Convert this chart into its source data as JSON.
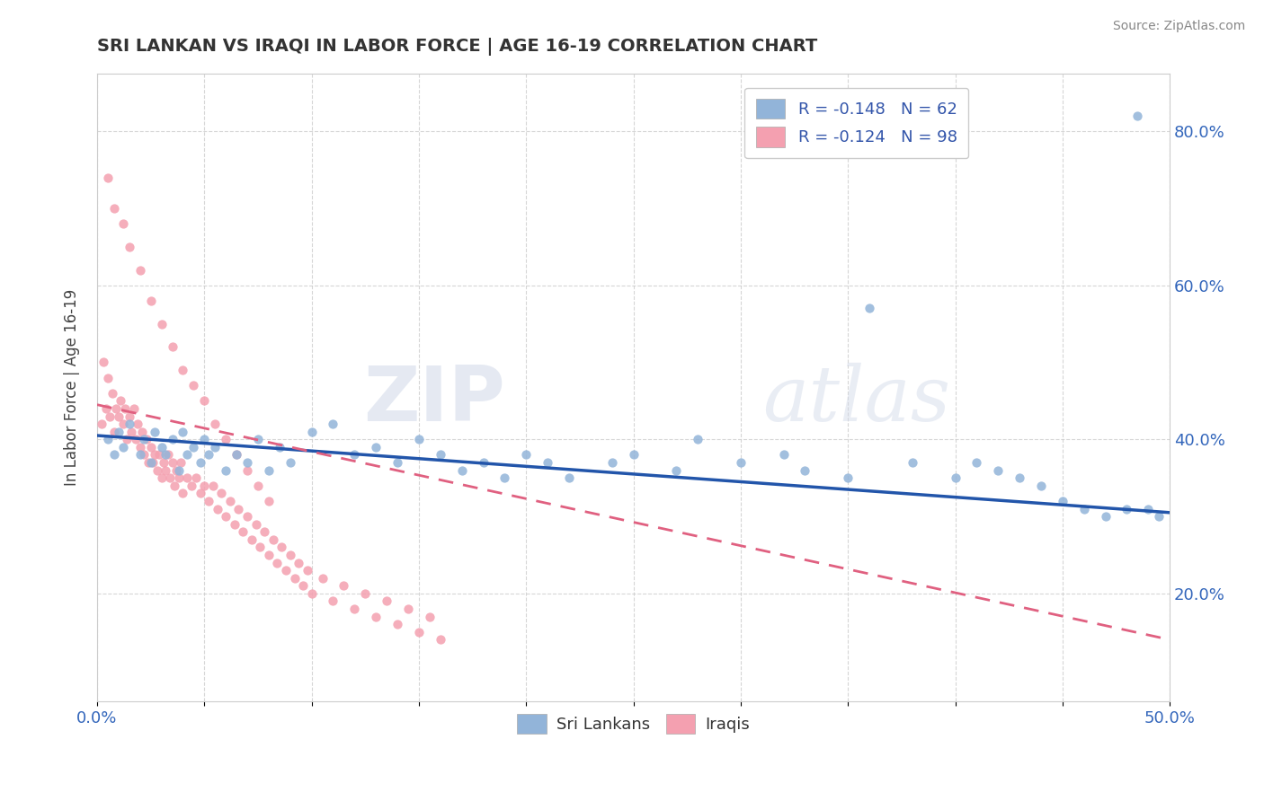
{
  "title": "SRI LANKAN VS IRAQI IN LABOR FORCE | AGE 16-19 CORRELATION CHART",
  "source": "Source: ZipAtlas.com",
  "ylabel": "In Labor Force | Age 16-19",
  "xmin": 0.0,
  "xmax": 0.5,
  "ymin": 0.06,
  "ymax": 0.875,
  "yticks": [
    0.2,
    0.4,
    0.6,
    0.8
  ],
  "ytick_labels": [
    "20.0%",
    "40.0%",
    "60.0%",
    "80.0%"
  ],
  "xticks": [
    0.0,
    0.05,
    0.1,
    0.15,
    0.2,
    0.25,
    0.3,
    0.35,
    0.4,
    0.45,
    0.5
  ],
  "legend_r1": "R = -0.148",
  "legend_n1": "N = 62",
  "legend_r2": "R = -0.124",
  "legend_n2": "N = 98",
  "sri_lankan_color": "#92B4D9",
  "iraqi_color": "#F4A0B0",
  "sri_lankan_line_color": "#2255AA",
  "iraqi_line_color": "#E06080",
  "watermark_zip": "ZIP",
  "watermark_atlas": "atlas",
  "sl_x": [
    0.005,
    0.008,
    0.01,
    0.012,
    0.015,
    0.02,
    0.022,
    0.025,
    0.027,
    0.03,
    0.032,
    0.035,
    0.038,
    0.04,
    0.042,
    0.045,
    0.048,
    0.05,
    0.052,
    0.055,
    0.06,
    0.065,
    0.07,
    0.075,
    0.08,
    0.085,
    0.09,
    0.1,
    0.11,
    0.12,
    0.13,
    0.14,
    0.15,
    0.16,
    0.17,
    0.18,
    0.19,
    0.2,
    0.21,
    0.22,
    0.24,
    0.25,
    0.27,
    0.28,
    0.3,
    0.32,
    0.33,
    0.35,
    0.36,
    0.38,
    0.4,
    0.41,
    0.42,
    0.43,
    0.44,
    0.45,
    0.46,
    0.47,
    0.48,
    0.49,
    0.485,
    0.495
  ],
  "sl_y": [
    0.4,
    0.38,
    0.41,
    0.39,
    0.42,
    0.38,
    0.4,
    0.37,
    0.41,
    0.39,
    0.38,
    0.4,
    0.36,
    0.41,
    0.38,
    0.39,
    0.37,
    0.4,
    0.38,
    0.39,
    0.36,
    0.38,
    0.37,
    0.4,
    0.36,
    0.39,
    0.37,
    0.41,
    0.42,
    0.38,
    0.39,
    0.37,
    0.4,
    0.38,
    0.36,
    0.37,
    0.35,
    0.38,
    0.37,
    0.35,
    0.37,
    0.38,
    0.36,
    0.4,
    0.37,
    0.38,
    0.36,
    0.35,
    0.57,
    0.37,
    0.35,
    0.37,
    0.36,
    0.35,
    0.34,
    0.32,
    0.31,
    0.3,
    0.31,
    0.31,
    0.82,
    0.3
  ],
  "iq_x": [
    0.002,
    0.003,
    0.004,
    0.005,
    0.006,
    0.007,
    0.008,
    0.009,
    0.01,
    0.011,
    0.012,
    0.013,
    0.014,
    0.015,
    0.016,
    0.017,
    0.018,
    0.019,
    0.02,
    0.021,
    0.022,
    0.023,
    0.024,
    0.025,
    0.026,
    0.027,
    0.028,
    0.029,
    0.03,
    0.031,
    0.032,
    0.033,
    0.034,
    0.035,
    0.036,
    0.037,
    0.038,
    0.039,
    0.04,
    0.042,
    0.044,
    0.046,
    0.048,
    0.05,
    0.052,
    0.054,
    0.056,
    0.058,
    0.06,
    0.062,
    0.064,
    0.066,
    0.068,
    0.07,
    0.072,
    0.074,
    0.076,
    0.078,
    0.08,
    0.082,
    0.084,
    0.086,
    0.088,
    0.09,
    0.092,
    0.094,
    0.096,
    0.098,
    0.1,
    0.105,
    0.11,
    0.115,
    0.12,
    0.125,
    0.13,
    0.135,
    0.14,
    0.145,
    0.15,
    0.155,
    0.16,
    0.005,
    0.008,
    0.012,
    0.015,
    0.02,
    0.025,
    0.03,
    0.035,
    0.04,
    0.045,
    0.05,
    0.055,
    0.06,
    0.065,
    0.07,
    0.075,
    0.08
  ],
  "iq_y": [
    0.42,
    0.5,
    0.44,
    0.48,
    0.43,
    0.46,
    0.41,
    0.44,
    0.43,
    0.45,
    0.42,
    0.44,
    0.4,
    0.43,
    0.41,
    0.44,
    0.4,
    0.42,
    0.39,
    0.41,
    0.38,
    0.4,
    0.37,
    0.39,
    0.37,
    0.38,
    0.36,
    0.38,
    0.35,
    0.37,
    0.36,
    0.38,
    0.35,
    0.37,
    0.34,
    0.36,
    0.35,
    0.37,
    0.33,
    0.35,
    0.34,
    0.35,
    0.33,
    0.34,
    0.32,
    0.34,
    0.31,
    0.33,
    0.3,
    0.32,
    0.29,
    0.31,
    0.28,
    0.3,
    0.27,
    0.29,
    0.26,
    0.28,
    0.25,
    0.27,
    0.24,
    0.26,
    0.23,
    0.25,
    0.22,
    0.24,
    0.21,
    0.23,
    0.2,
    0.22,
    0.19,
    0.21,
    0.18,
    0.2,
    0.17,
    0.19,
    0.16,
    0.18,
    0.15,
    0.17,
    0.14,
    0.74,
    0.7,
    0.68,
    0.65,
    0.62,
    0.58,
    0.55,
    0.52,
    0.49,
    0.47,
    0.45,
    0.42,
    0.4,
    0.38,
    0.36,
    0.34,
    0.32
  ]
}
